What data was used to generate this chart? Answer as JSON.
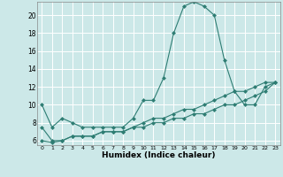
{
  "xlabel": "Humidex (Indice chaleur)",
  "bg_color": "#cce8e8",
  "line_color": "#2e7d73",
  "grid_color": "#ffffff",
  "xlim": [
    -0.5,
    23.5
  ],
  "ylim": [
    5.5,
    21.5
  ],
  "yticks": [
    6,
    8,
    10,
    12,
    14,
    16,
    18,
    20
  ],
  "xticks": [
    0,
    1,
    2,
    3,
    4,
    5,
    6,
    7,
    8,
    9,
    10,
    11,
    12,
    13,
    14,
    15,
    16,
    17,
    18,
    19,
    20,
    21,
    22,
    23
  ],
  "line1_x": [
    0,
    1,
    2,
    3,
    4,
    5,
    6,
    7,
    8,
    9,
    10,
    11,
    12,
    13,
    14,
    15,
    16,
    17,
    18,
    19,
    20,
    21,
    22,
    23
  ],
  "line1_y": [
    10.0,
    7.5,
    8.5,
    8.0,
    7.5,
    7.5,
    7.5,
    7.5,
    7.5,
    8.5,
    10.5,
    10.5,
    13.0,
    18.0,
    21.0,
    21.5,
    21.0,
    20.0,
    15.0,
    11.5,
    10.0,
    10.0,
    12.0,
    12.5
  ],
  "line2_x": [
    0,
    1,
    2,
    3,
    4,
    5,
    6,
    7,
    8,
    9,
    10,
    11,
    12,
    13,
    14,
    15,
    16,
    17,
    18,
    19,
    20,
    21,
    22,
    23
  ],
  "line2_y": [
    7.5,
    6.0,
    6.0,
    6.5,
    6.5,
    6.5,
    7.0,
    7.0,
    7.0,
    7.5,
    8.0,
    8.5,
    8.5,
    9.0,
    9.5,
    9.5,
    10.0,
    10.5,
    11.0,
    11.5,
    11.5,
    12.0,
    12.5,
    12.5
  ],
  "line3_x": [
    0,
    1,
    2,
    3,
    4,
    5,
    6,
    7,
    8,
    9,
    10,
    11,
    12,
    13,
    14,
    15,
    16,
    17,
    18,
    19,
    20,
    21,
    22,
    23
  ],
  "line3_y": [
    6.0,
    5.8,
    6.0,
    6.5,
    6.5,
    6.5,
    7.0,
    7.0,
    7.0,
    7.5,
    7.5,
    8.0,
    8.0,
    8.5,
    8.5,
    9.0,
    9.0,
    9.5,
    10.0,
    10.0,
    10.5,
    11.0,
    11.5,
    12.5
  ]
}
